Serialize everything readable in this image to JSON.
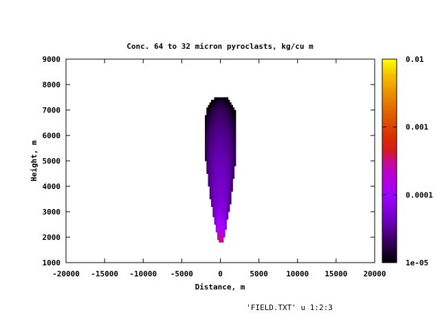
{
  "chart_data": {
    "type": "heatmap",
    "title": "Conc. 64 to 32 micron pyroclasts, kg/cu m",
    "xlabel": "Distance, m",
    "ylabel": "Height, m",
    "xlim": [
      -20000,
      20000
    ],
    "ylim": [
      1000,
      9000
    ],
    "x_ticks": [
      "-20000",
      "-15000",
      "-10000",
      "-5000",
      "0",
      "5000",
      "10000",
      "15000",
      "20000"
    ],
    "y_ticks": [
      "1000",
      "2000",
      "3000",
      "4000",
      "5000",
      "6000",
      "7000",
      "8000",
      "9000"
    ],
    "colorbar": {
      "scale": "log",
      "range": [
        1e-05,
        0.01
      ],
      "ticks": [
        "1e-05",
        "0.0001",
        "0.001",
        "0.01"
      ],
      "palette": [
        "#000000",
        "#3a0060",
        "#8a00e0",
        "#b000ff",
        "#c8189a",
        "#d82800",
        "#e05400",
        "#e88000",
        "#f0b000",
        "#ffff00"
      ]
    },
    "plume": {
      "description_source": "plotted field",
      "top_height": 7500,
      "base_height": 1800,
      "max_half_width": 2000,
      "profile": [
        {
          "height": 7500,
          "half_width": 700,
          "concentration": 1.2e-05
        },
        {
          "height": 7300,
          "half_width": 1300,
          "concentration": 1.5e-05
        },
        {
          "height": 7000,
          "half_width": 1800,
          "concentration": 2e-05
        },
        {
          "height": 6500,
          "half_width": 2000,
          "concentration": 2.5e-05
        },
        {
          "height": 6000,
          "half_width": 2000,
          "concentration": 3e-05
        },
        {
          "height": 5500,
          "half_width": 2000,
          "concentration": 3.5e-05
        },
        {
          "height": 5000,
          "half_width": 1900,
          "concentration": 4e-05
        },
        {
          "height": 4500,
          "half_width": 1700,
          "concentration": 4.5e-05
        },
        {
          "height": 4000,
          "half_width": 1500,
          "concentration": 5e-05
        },
        {
          "height": 3500,
          "half_width": 1300,
          "concentration": 5.5e-05
        },
        {
          "height": 3000,
          "half_width": 1000,
          "concentration": 7e-05
        },
        {
          "height": 2500,
          "half_width": 700,
          "concentration": 0.00012
        },
        {
          "height": 2000,
          "half_width": 400,
          "concentration": 0.0003
        },
        {
          "height": 1800,
          "half_width": 250,
          "concentration": 0.0005
        }
      ]
    }
  },
  "key_text": "'FIELD.TXT' u 1:2:3"
}
